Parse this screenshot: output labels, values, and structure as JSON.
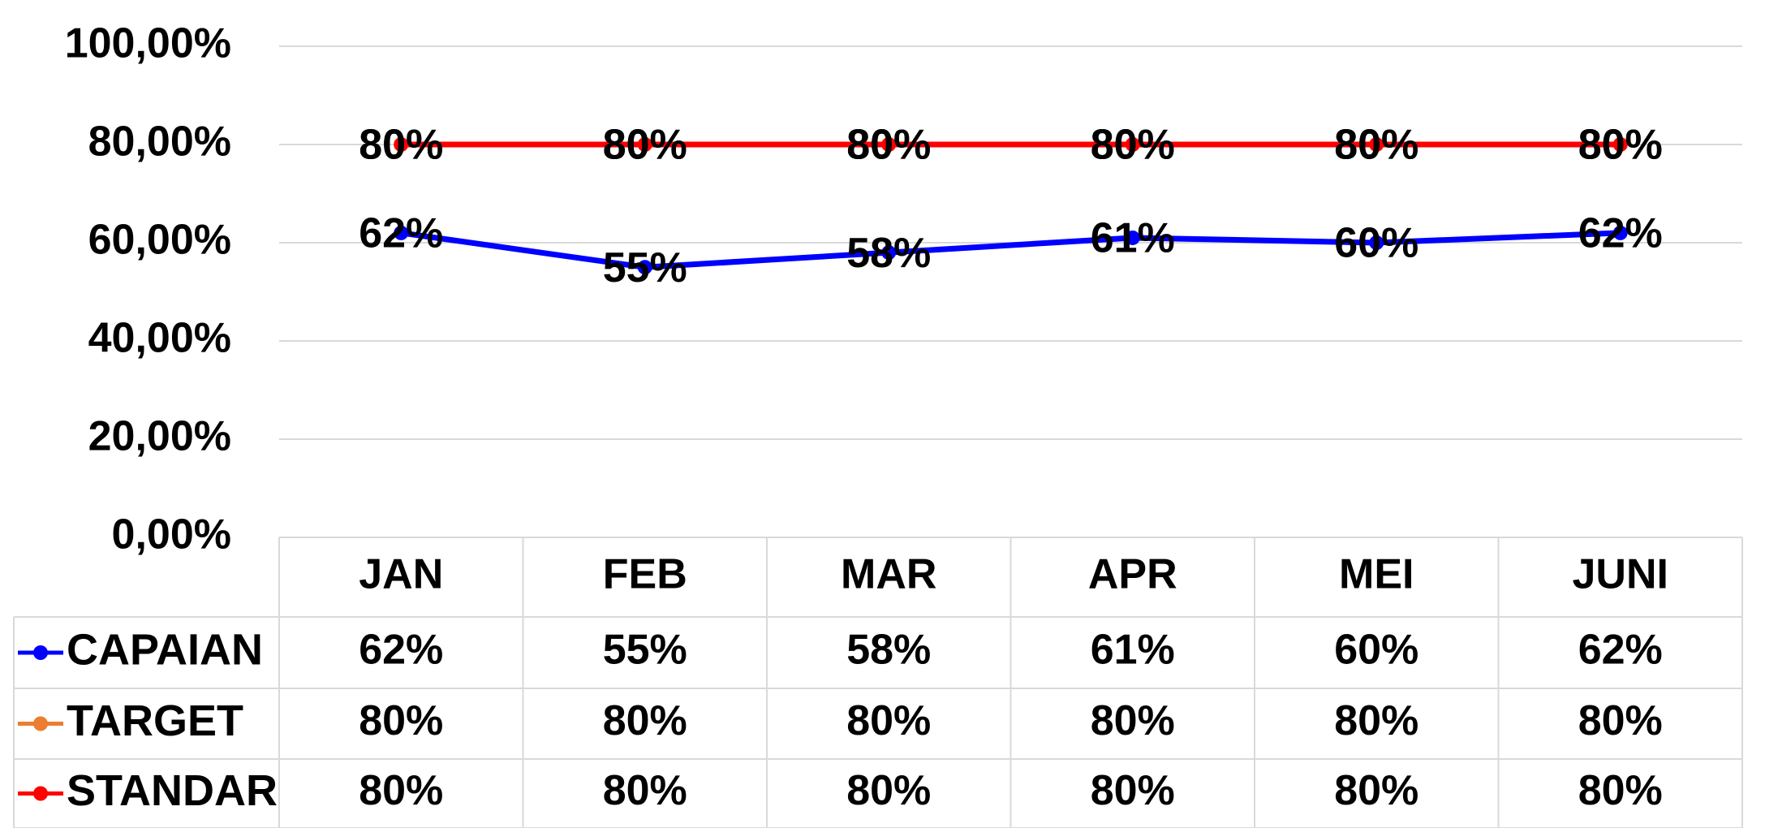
{
  "chart_data": {
    "type": "line",
    "categories": [
      "JAN",
      "FEB",
      "MAR",
      "APR",
      "MEI",
      "JUNI"
    ],
    "series": [
      {
        "name": "CAPAIAN",
        "color": "#0000ff",
        "values": [
          62,
          55,
          58,
          61,
          60,
          62
        ],
        "value_labels": [
          "62%",
          "55%",
          "58%",
          "61%",
          "60%",
          "62%"
        ]
      },
      {
        "name": "TARGET",
        "color": "#ed7d31",
        "values": [
          80,
          80,
          80,
          80,
          80,
          80
        ],
        "value_labels": [
          "80%",
          "80%",
          "80%",
          "80%",
          "80%",
          "80%"
        ]
      },
      {
        "name": "STANDAR",
        "color": "#ff0000",
        "values": [
          80,
          80,
          80,
          80,
          80,
          80
        ],
        "value_labels": [
          "80%",
          "80%",
          "80%",
          "80%",
          "80%",
          "80%"
        ]
      }
    ],
    "ylim": [
      0,
      100
    ],
    "yticks": [
      {
        "value": 0,
        "label": "0,00%"
      },
      {
        "value": 20,
        "label": "20,00%"
      },
      {
        "value": 40,
        "label": "40,00%"
      },
      {
        "value": 60,
        "label": "60,00%"
      },
      {
        "value": 80,
        "label": "80,00%"
      },
      {
        "value": 100,
        "label": "100,00%"
      }
    ],
    "grid": true
  }
}
